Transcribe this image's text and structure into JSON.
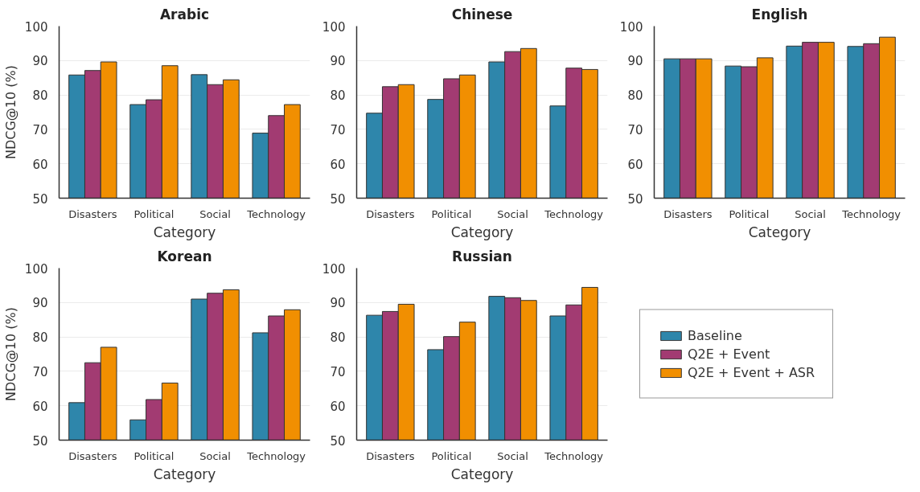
{
  "chart_data": [
    {
      "type": "bar",
      "title": "Arabic",
      "xlabel": "Category",
      "ylabel": "NDCG@10 (%)",
      "categories": [
        "Disasters",
        "Political",
        "Social",
        "Technology"
      ],
      "ylim": [
        50,
        100
      ],
      "yticks": [
        50,
        60,
        70,
        80,
        90,
        100
      ],
      "grid": "y",
      "series": [
        {
          "color": "#2e86ab",
          "values": [
            85.8,
            77.2,
            85.9,
            68.9
          ]
        },
        {
          "color": "#a23b72",
          "values": [
            87.1,
            78.6,
            83.0,
            74.0
          ]
        },
        {
          "color": "#f18f01",
          "values": [
            89.6,
            88.5,
            84.4,
            77.2
          ]
        }
      ]
    },
    {
      "type": "bar",
      "title": "Chinese",
      "xlabel": "Category",
      "categories": [
        "Disasters",
        "Political",
        "Social",
        "Technology"
      ],
      "ylim": [
        50,
        100
      ],
      "yticks": [
        50,
        60,
        70,
        80,
        90,
        100
      ],
      "grid": "y",
      "series": [
        {
          "color": "#2e86ab",
          "values": [
            74.7,
            78.7,
            89.6,
            76.8
          ]
        },
        {
          "color": "#a23b72",
          "values": [
            82.4,
            84.7,
            92.6,
            87.8
          ]
        },
        {
          "color": "#f18f01",
          "values": [
            83.0,
            85.8,
            93.5,
            87.4
          ]
        }
      ]
    },
    {
      "type": "bar",
      "title": "English",
      "xlabel": "Category",
      "categories": [
        "Disasters",
        "Political",
        "Social",
        "Technology"
      ],
      "ylim": [
        50,
        100
      ],
      "yticks": [
        50,
        60,
        70,
        80,
        90,
        100
      ],
      "grid": "y",
      "series": [
        {
          "color": "#2e86ab",
          "values": [
            90.5,
            88.4,
            94.2,
            94.1
          ]
        },
        {
          "color": "#a23b72",
          "values": [
            90.5,
            88.2,
            95.3,
            94.9
          ]
        },
        {
          "color": "#f18f01",
          "values": [
            90.5,
            90.8,
            95.3,
            96.8
          ]
        }
      ]
    },
    {
      "type": "bar",
      "title": "Korean",
      "xlabel": "Category",
      "ylabel": "NDCG@10 (%)",
      "categories": [
        "Disasters",
        "Political",
        "Social",
        "Technology"
      ],
      "ylim": [
        50,
        100
      ],
      "yticks": [
        50,
        60,
        70,
        80,
        90,
        100
      ],
      "grid": "y",
      "series": [
        {
          "color": "#2e86ab",
          "values": [
            60.9,
            55.9,
            91.0,
            81.2
          ]
        },
        {
          "color": "#a23b72",
          "values": [
            72.5,
            61.8,
            92.7,
            86.1
          ]
        },
        {
          "color": "#f18f01",
          "values": [
            77.0,
            66.6,
            93.7,
            87.9
          ]
        }
      ]
    },
    {
      "type": "bar",
      "title": "Russian",
      "xlabel": "Category",
      "categories": [
        "Disasters",
        "Political",
        "Social",
        "Technology"
      ],
      "ylim": [
        50,
        100
      ],
      "yticks": [
        50,
        60,
        70,
        80,
        90,
        100
      ],
      "grid": "y",
      "legend": "right",
      "series": [
        {
          "name": "Baseline",
          "color": "#2e86ab",
          "values": [
            86.3,
            76.3,
            91.8,
            86.1
          ]
        },
        {
          "name": "Q2E + Event",
          "color": "#a23b72",
          "values": [
            87.4,
            80.1,
            91.4,
            89.3
          ]
        },
        {
          "name": "Q2E + Event + ASR",
          "color": "#f18f01",
          "values": [
            89.5,
            84.3,
            90.6,
            94.4
          ]
        }
      ]
    }
  ]
}
